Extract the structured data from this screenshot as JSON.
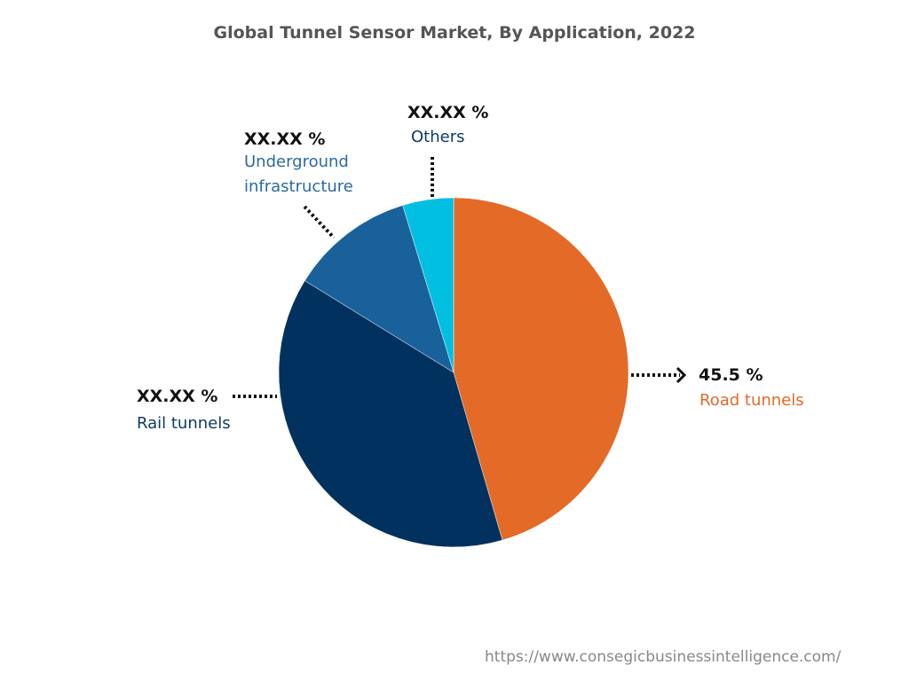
{
  "chart_data": {
    "type": "pie",
    "title": "Global Tunnel Sensor Market, By Application, 2022",
    "slices": [
      {
        "name": "Road tunnels",
        "value": 45.5,
        "label": "45.5 %",
        "color": "#e36a27"
      },
      {
        "name": "Rail tunnels",
        "value": 38.3,
        "label": "XX.XX %",
        "color": "#00315f"
      },
      {
        "name": "Underground infrastructure",
        "value": 11.5,
        "label": "XX.XX %",
        "color": "#19619b"
      },
      {
        "name": "Others",
        "value": 4.7,
        "label": "XX.XX %",
        "color": "#00bfe1"
      }
    ],
    "label_colors": {
      "Road tunnels": "#e36a27",
      "Rail tunnels": "#0d3b66",
      "Underground infrastructure": "#2a6aa0",
      "Others": "#0d3b66"
    }
  },
  "footer": "https://www.consegicbusinessintelligence.com/"
}
